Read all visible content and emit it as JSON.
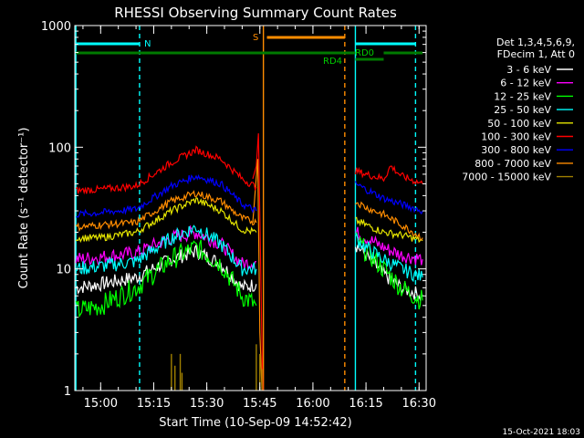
{
  "chart_data": {
    "type": "line",
    "title": "RHESSI Observing Summary Count Rates",
    "xlabel": "Start Time (10-Sep-09 14:52:42)",
    "ylabel": "Count Rate (s⁻¹ detector⁻¹)",
    "yscale": "log",
    "ylim": [
      1,
      1000
    ],
    "xlim": [
      "14:52:42",
      "16:32:00"
    ],
    "x_ticks": [
      "15:00",
      "15:15",
      "15:30",
      "15:45",
      "16:00",
      "16:15",
      "16:30"
    ],
    "y_ticks": [
      "1",
      "10",
      "100",
      "1000"
    ],
    "legend": {
      "position": "right",
      "header": [
        "Det 1,3,4,5,6,9,",
        "FDecim 1, Att 0"
      ],
      "entries": [
        {
          "name": "3 - 6 keV",
          "color": "#ffffff"
        },
        {
          "name": "6 - 12 keV",
          "color": "#ff00ff"
        },
        {
          "name": "12 - 25 keV",
          "color": "#00ff00"
        },
        {
          "name": "25 - 50 keV",
          "color": "#00ffff"
        },
        {
          "name": "50 - 100 keV",
          "color": "#e6e600"
        },
        {
          "name": "100 - 300 keV",
          "color": "#ff0000"
        },
        {
          "name": "300 - 800 keV",
          "color": "#0000ff"
        },
        {
          "name": "800 - 7000 keV",
          "color": "#ff8c00"
        },
        {
          "name": "7000 - 15000 keV",
          "color": "#a08000"
        }
      ]
    },
    "series": [
      {
        "name": "3 - 6 keV",
        "color": "#ffffff",
        "points": [
          [
            "14:53",
            7
          ],
          [
            "15:00",
            7.5
          ],
          [
            "15:10",
            8.5
          ],
          [
            "15:20",
            12
          ],
          [
            "15:27",
            14
          ],
          [
            "15:34",
            11
          ],
          [
            "15:40",
            7
          ],
          [
            "15:44",
            7.5
          ],
          [
            "16:12",
            16
          ],
          [
            "16:15",
            13
          ],
          [
            "16:20",
            9
          ],
          [
            "16:25",
            7
          ],
          [
            "16:31",
            6
          ]
        ]
      },
      {
        "name": "6 - 12 keV",
        "color": "#ff00ff",
        "points": [
          [
            "14:53",
            12
          ],
          [
            "15:00",
            12.5
          ],
          [
            "15:10",
            13.5
          ],
          [
            "15:20",
            18
          ],
          [
            "15:27",
            20
          ],
          [
            "15:34",
            16
          ],
          [
            "15:40",
            11
          ],
          [
            "15:44",
            11.5
          ],
          [
            "16:12",
            20
          ],
          [
            "16:15",
            18
          ],
          [
            "16:20",
            15
          ],
          [
            "16:25",
            13
          ],
          [
            "16:31",
            12
          ]
        ]
      },
      {
        "name": "12 - 25 keV",
        "color": "#00ff00",
        "points": [
          [
            "14:53",
            4.5
          ],
          [
            "15:00",
            5
          ],
          [
            "15:10",
            7
          ],
          [
            "15:20",
            12
          ],
          [
            "15:27",
            15
          ],
          [
            "15:34",
            11
          ],
          [
            "15:40",
            6
          ],
          [
            "15:44",
            5
          ],
          [
            "16:12",
            17
          ],
          [
            "16:15",
            14
          ],
          [
            "16:20",
            10
          ],
          [
            "16:25",
            7
          ],
          [
            "16:31",
            5.5
          ]
        ]
      },
      {
        "name": "25 - 50 keV",
        "color": "#00ffff",
        "points": [
          [
            "14:53",
            10
          ],
          [
            "15:00",
            10.5
          ],
          [
            "15:10",
            11.5
          ],
          [
            "15:20",
            18
          ],
          [
            "15:27",
            22
          ],
          [
            "15:34",
            16
          ],
          [
            "15:40",
            10
          ],
          [
            "15:44",
            10
          ],
          [
            "16:12",
            18
          ],
          [
            "16:15",
            15
          ],
          [
            "16:20",
            12
          ],
          [
            "16:25",
            10
          ],
          [
            "16:31",
            8.5
          ]
        ]
      },
      {
        "name": "50 - 100 keV",
        "color": "#e6e600",
        "points": [
          [
            "14:53",
            18
          ],
          [
            "15:00",
            18
          ],
          [
            "15:10",
            20
          ],
          [
            "15:20",
            30
          ],
          [
            "15:27",
            37
          ],
          [
            "15:34",
            30
          ],
          [
            "15:40",
            21
          ],
          [
            "15:44",
            20
          ],
          [
            "16:12",
            25
          ],
          [
            "16:15",
            23
          ],
          [
            "16:20",
            20
          ],
          [
            "16:25",
            19
          ],
          [
            "16:31",
            17
          ]
        ]
      },
      {
        "name": "100 - 300 keV",
        "color": "#ff0000",
        "points": [
          [
            "14:53",
            44
          ],
          [
            "15:00",
            45
          ],
          [
            "15:10",
            48
          ],
          [
            "15:20",
            75
          ],
          [
            "15:27",
            95
          ],
          [
            "15:34",
            80
          ],
          [
            "15:40",
            55
          ],
          [
            "15:44",
            47
          ],
          [
            "16:12",
            64
          ],
          [
            "16:15",
            60
          ],
          [
            "16:20",
            55
          ],
          [
            "16:22",
            70
          ],
          [
            "16:25",
            58
          ],
          [
            "16:31",
            50
          ]
        ]
      },
      {
        "name": "300 - 800 keV",
        "color": "#0000ff",
        "points": [
          [
            "14:53",
            28
          ],
          [
            "15:00",
            29
          ],
          [
            "15:10",
            31
          ],
          [
            "15:20",
            48
          ],
          [
            "15:27",
            58
          ],
          [
            "15:34",
            50
          ],
          [
            "15:40",
            34
          ],
          [
            "15:44",
            30
          ],
          [
            "16:12",
            50
          ],
          [
            "16:15",
            45
          ],
          [
            "16:20",
            38
          ],
          [
            "16:25",
            34
          ],
          [
            "16:31",
            30
          ]
        ]
      },
      {
        "name": "800 - 7000 keV",
        "color": "#ff8c00",
        "points": [
          [
            "14:53",
            22
          ],
          [
            "15:00",
            23
          ],
          [
            "15:10",
            24
          ],
          [
            "15:20",
            36
          ],
          [
            "15:27",
            42
          ],
          [
            "15:34",
            36
          ],
          [
            "15:40",
            26
          ],
          [
            "15:44",
            24
          ],
          [
            "16:12",
            36
          ],
          [
            "16:15",
            32
          ],
          [
            "16:20",
            28
          ],
          [
            "16:25",
            23
          ],
          [
            "16:31",
            18
          ]
        ]
      }
    ],
    "annotations": [
      {
        "text": "N",
        "color": "#00ffff"
      },
      {
        "text": "S",
        "color": "#ff8c00"
      },
      {
        "text": "RD0",
        "color": "#00cc00"
      },
      {
        "text": "RD4",
        "color": "#00cc00"
      }
    ]
  },
  "timestamp": "15-Oct-2021 18:03"
}
